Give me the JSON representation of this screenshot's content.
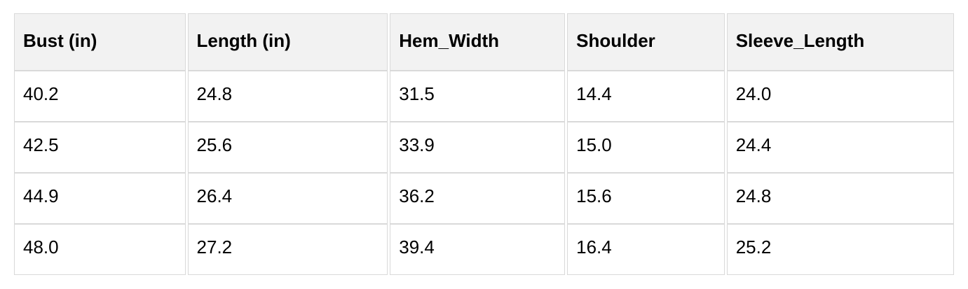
{
  "table": {
    "columns": [
      "Bust (in)",
      "Length (in)",
      "Hem_Width",
      "Shoulder",
      "Sleeve_Length"
    ],
    "rows": [
      [
        "40.2",
        "24.8",
        "31.5",
        "14.4",
        "24.0"
      ],
      [
        "42.5",
        "25.6",
        "33.9",
        "15.0",
        "24.4"
      ],
      [
        "44.9",
        "26.4",
        "36.2",
        "15.6",
        "24.8"
      ],
      [
        "48.0",
        "27.2",
        "39.4",
        "16.4",
        "25.2"
      ]
    ]
  },
  "colors": {
    "header_bg": "#f2f2f2",
    "border": "#d9d9d9",
    "text": "#000000",
    "page_bg": "#ffffff"
  },
  "chart_data": {
    "type": "table",
    "title": "",
    "columns": [
      "Bust (in)",
      "Length (in)",
      "Hem_Width",
      "Shoulder",
      "Sleeve_Length"
    ],
    "rows": [
      [
        40.2,
        24.8,
        31.5,
        14.4,
        24.0
      ],
      [
        42.5,
        25.6,
        33.9,
        15.0,
        24.4
      ],
      [
        44.9,
        26.4,
        36.2,
        15.6,
        24.8
      ],
      [
        48.0,
        27.2,
        39.4,
        16.4,
        25.2
      ]
    ]
  }
}
